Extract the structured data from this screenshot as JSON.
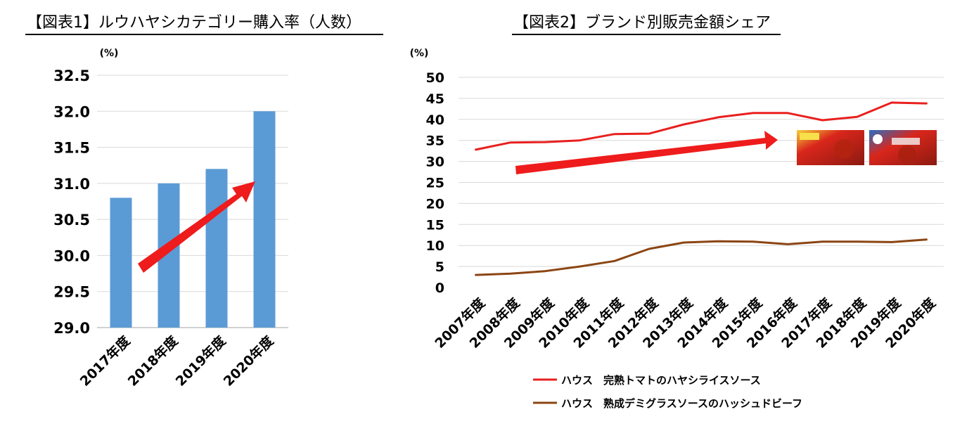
{
  "chart_data": [
    {
      "type": "bar",
      "title": "【図表1】ルウハヤシカテゴリー購入率（人数）",
      "ylabel": "(%)",
      "categories": [
        "2017年度",
        "2018年度",
        "2019年度",
        "2020年度"
      ],
      "values": [
        30.8,
        31.0,
        31.2,
        32.0
      ],
      "ylim": [
        29.0,
        32.5
      ],
      "yticks": [
        "29.0",
        "29.5",
        "30.0",
        "30.5",
        "31.0",
        "31.5",
        "32.0",
        "32.5"
      ],
      "grid": true,
      "bar_color": "#5b9bd5",
      "annotation": "upward red arrow"
    },
    {
      "type": "line",
      "title": "【図表2】ブランド別販売金額シェア",
      "ylabel": "(%)",
      "x": [
        "2007年度",
        "2008年度",
        "2009年度",
        "2010年度",
        "2011年度",
        "2012年度",
        "2013年度",
        "2014年度",
        "2015年度",
        "2016年度",
        "2017年度",
        "2018年度",
        "2019年度",
        "2020年度"
      ],
      "ylim": [
        0,
        50
      ],
      "yticks": [
        "0",
        "5",
        "10",
        "15",
        "20",
        "25",
        "30",
        "35",
        "40",
        "45",
        "50"
      ],
      "grid": true,
      "legend_position": "bottom",
      "series": [
        {
          "name": "ハウス　完熟トマトのハヤシライスソース",
          "color": "#e8201e",
          "values": [
            32.8,
            34.5,
            34.6,
            35.0,
            36.5,
            36.6,
            38.8,
            40.5,
            41.5,
            41.5,
            39.8,
            40.6,
            44.0,
            43.8
          ]
        },
        {
          "name": "ハウス　熟成デミグラスソースのハッシュドビーフ",
          "color": "#8b4513",
          "values": [
            3.0,
            3.3,
            3.9,
            5.0,
            6.3,
            9.2,
            10.7,
            11.0,
            10.9,
            10.3,
            10.9,
            10.9,
            10.8,
            11.4
          ]
        }
      ],
      "annotation": "upward red arrow and product package images"
    }
  ]
}
